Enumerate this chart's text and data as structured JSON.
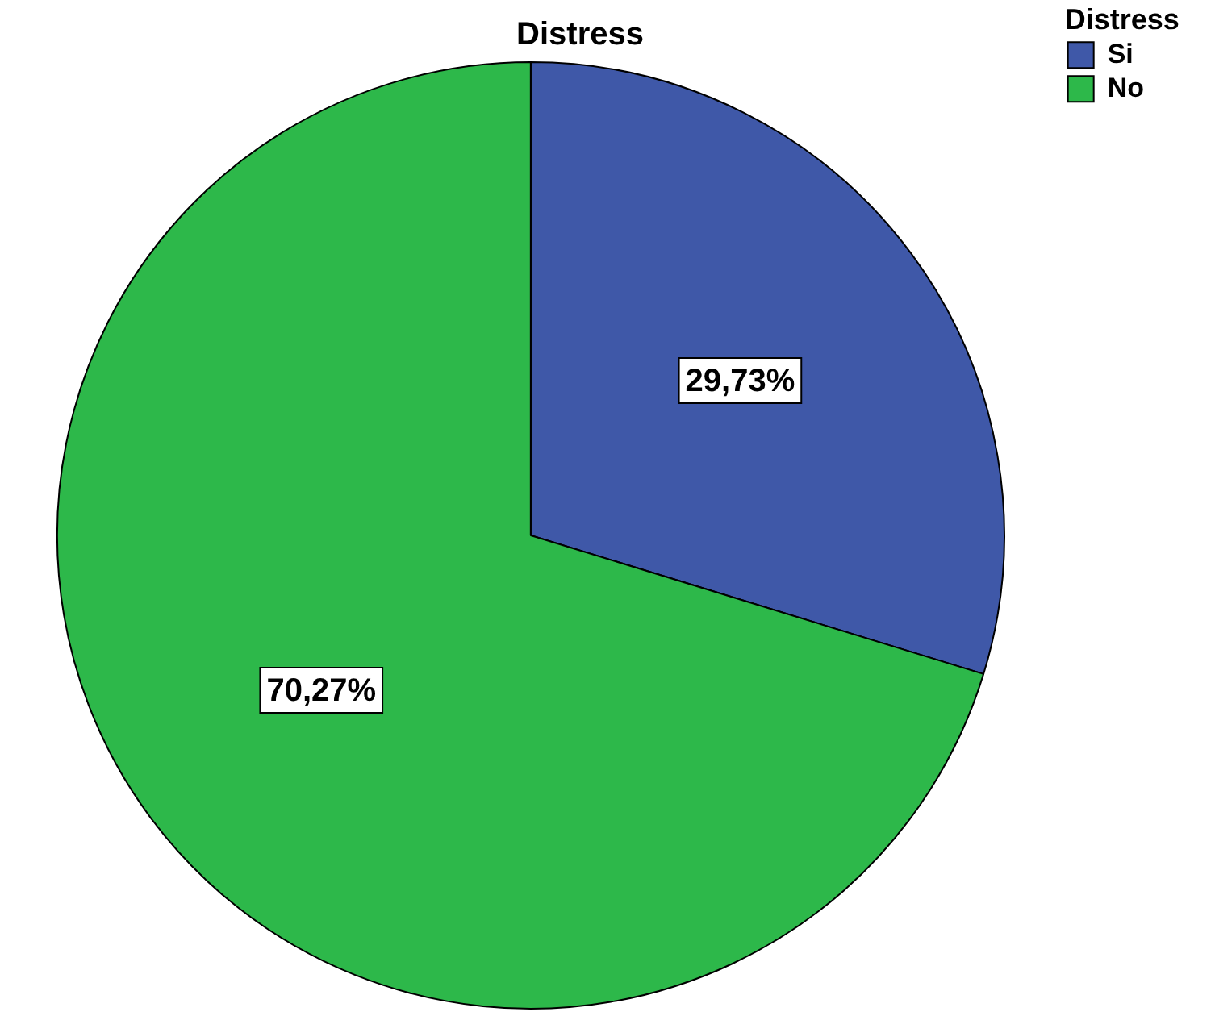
{
  "chart_data": {
    "type": "pie",
    "title": "Distress",
    "legend_title": "Distress",
    "legend": "top right",
    "categories": [
      "Si",
      "No"
    ],
    "values": [
      29.73,
      70.27
    ],
    "colors": [
      "#3f58a8",
      "#2db84a"
    ],
    "value_labels": [
      "29,73%",
      "70,27%"
    ]
  }
}
